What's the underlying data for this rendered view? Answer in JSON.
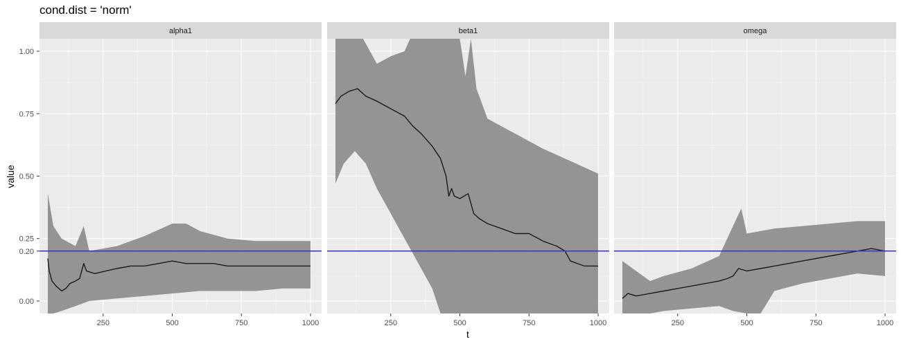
{
  "chart_data": {
    "type": "line",
    "title": "cond.dist = 'norm'",
    "xlabel": "t",
    "ylabel": "value",
    "xlim": [
      20,
      1040
    ],
    "ylim": [
      -0.05,
      1.05
    ],
    "x_ticks": [
      250,
      500,
      750,
      1000
    ],
    "y_ticks": [
      0.0,
      0.2,
      0.25,
      0.5,
      0.75,
      1.0
    ],
    "y_tick_labels": [
      "0.00",
      "0.20",
      "0.25",
      "0.50",
      "0.75",
      "1.00"
    ],
    "hline": {
      "value": 0.2,
      "color": "#3333cc"
    },
    "colors": {
      "line": "#1a1a1a",
      "band": "#8f8f8f"
    },
    "panels": [
      {
        "name": "alpha1",
        "mean": [
          [
            50,
            0.17
          ],
          [
            55,
            0.12
          ],
          [
            65,
            0.08
          ],
          [
            80,
            0.06
          ],
          [
            100,
            0.04
          ],
          [
            115,
            0.05
          ],
          [
            130,
            0.07
          ],
          [
            150,
            0.08
          ],
          [
            165,
            0.09
          ],
          [
            180,
            0.15
          ],
          [
            190,
            0.12
          ],
          [
            220,
            0.11
          ],
          [
            260,
            0.12
          ],
          [
            300,
            0.13
          ],
          [
            350,
            0.14
          ],
          [
            400,
            0.14
          ],
          [
            450,
            0.15
          ],
          [
            500,
            0.16
          ],
          [
            550,
            0.15
          ],
          [
            600,
            0.15
          ],
          [
            650,
            0.15
          ],
          [
            700,
            0.14
          ],
          [
            750,
            0.14
          ],
          [
            800,
            0.14
          ],
          [
            850,
            0.14
          ],
          [
            900,
            0.14
          ],
          [
            950,
            0.14
          ],
          [
            1000,
            0.14
          ]
        ],
        "lower": [
          [
            50,
            -0.05
          ],
          [
            70,
            -0.05
          ],
          [
            100,
            -0.04
          ],
          [
            150,
            -0.02
          ],
          [
            200,
            0.0
          ],
          [
            300,
            0.01
          ],
          [
            400,
            0.02
          ],
          [
            500,
            0.03
          ],
          [
            600,
            0.04
          ],
          [
            700,
            0.04
          ],
          [
            800,
            0.04
          ],
          [
            900,
            0.05
          ],
          [
            1000,
            0.05
          ]
        ],
        "upper": [
          [
            50,
            0.43
          ],
          [
            70,
            0.3
          ],
          [
            100,
            0.25
          ],
          [
            150,
            0.22
          ],
          [
            180,
            0.3
          ],
          [
            200,
            0.2
          ],
          [
            300,
            0.22
          ],
          [
            400,
            0.26
          ],
          [
            500,
            0.31
          ],
          [
            550,
            0.31
          ],
          [
            600,
            0.28
          ],
          [
            700,
            0.25
          ],
          [
            800,
            0.24
          ],
          [
            900,
            0.24
          ],
          [
            1000,
            0.24
          ]
        ]
      },
      {
        "name": "beta1",
        "mean": [
          [
            50,
            0.79
          ],
          [
            70,
            0.82
          ],
          [
            100,
            0.84
          ],
          [
            130,
            0.85
          ],
          [
            160,
            0.82
          ],
          [
            200,
            0.8
          ],
          [
            250,
            0.77
          ],
          [
            300,
            0.74
          ],
          [
            330,
            0.7
          ],
          [
            360,
            0.67
          ],
          [
            400,
            0.62
          ],
          [
            430,
            0.57
          ],
          [
            450,
            0.5
          ],
          [
            460,
            0.42
          ],
          [
            470,
            0.45
          ],
          [
            480,
            0.42
          ],
          [
            500,
            0.41
          ],
          [
            530,
            0.43
          ],
          [
            550,
            0.35
          ],
          [
            570,
            0.33
          ],
          [
            600,
            0.31
          ],
          [
            650,
            0.29
          ],
          [
            700,
            0.27
          ],
          [
            750,
            0.27
          ],
          [
            800,
            0.24
          ],
          [
            850,
            0.22
          ],
          [
            880,
            0.2
          ],
          [
            900,
            0.16
          ],
          [
            950,
            0.14
          ],
          [
            1000,
            0.14
          ]
        ],
        "lower": [
          [
            50,
            0.47
          ],
          [
            80,
            0.55
          ],
          [
            120,
            0.6
          ],
          [
            160,
            0.55
          ],
          [
            200,
            0.45
          ],
          [
            250,
            0.35
          ],
          [
            300,
            0.25
          ],
          [
            350,
            0.15
          ],
          [
            400,
            0.05
          ],
          [
            430,
            -0.05
          ],
          [
            500,
            -0.05
          ],
          [
            600,
            -0.05
          ],
          [
            700,
            -0.05
          ],
          [
            800,
            -0.05
          ],
          [
            900,
            -0.05
          ],
          [
            1000,
            -0.05
          ]
        ],
        "upper": [
          [
            50,
            1.05
          ],
          [
            150,
            1.05
          ],
          [
            200,
            0.95
          ],
          [
            250,
            0.98
          ],
          [
            300,
            1.0
          ],
          [
            320,
            1.05
          ],
          [
            500,
            1.05
          ],
          [
            520,
            0.9
          ],
          [
            540,
            1.05
          ],
          [
            560,
            0.85
          ],
          [
            600,
            0.73
          ],
          [
            700,
            0.67
          ],
          [
            800,
            0.61
          ],
          [
            900,
            0.56
          ],
          [
            1000,
            0.51
          ]
        ]
      },
      {
        "name": "omega",
        "mean": [
          [
            50,
            0.01
          ],
          [
            70,
            0.03
          ],
          [
            100,
            0.02
          ],
          [
            150,
            0.03
          ],
          [
            200,
            0.04
          ],
          [
            250,
            0.05
          ],
          [
            300,
            0.06
          ],
          [
            350,
            0.07
          ],
          [
            400,
            0.08
          ],
          [
            430,
            0.09
          ],
          [
            450,
            0.1
          ],
          [
            470,
            0.13
          ],
          [
            500,
            0.12
          ],
          [
            550,
            0.13
          ],
          [
            600,
            0.14
          ],
          [
            650,
            0.15
          ],
          [
            700,
            0.16
          ],
          [
            750,
            0.17
          ],
          [
            800,
            0.18
          ],
          [
            850,
            0.19
          ],
          [
            900,
            0.2
          ],
          [
            950,
            0.21
          ],
          [
            1000,
            0.2
          ]
        ],
        "lower": [
          [
            50,
            -0.05
          ],
          [
            150,
            -0.05
          ],
          [
            200,
            -0.04
          ],
          [
            300,
            -0.03
          ],
          [
            400,
            -0.02
          ],
          [
            450,
            -0.04
          ],
          [
            500,
            -0.05
          ],
          [
            550,
            -0.05
          ],
          [
            600,
            0.04
          ],
          [
            700,
            0.07
          ],
          [
            800,
            0.09
          ],
          [
            900,
            0.11
          ],
          [
            1000,
            0.1
          ]
        ],
        "upper": [
          [
            50,
            0.16
          ],
          [
            100,
            0.12
          ],
          [
            150,
            0.08
          ],
          [
            200,
            0.1
          ],
          [
            300,
            0.13
          ],
          [
            400,
            0.18
          ],
          [
            450,
            0.3
          ],
          [
            480,
            0.37
          ],
          [
            500,
            0.27
          ],
          [
            600,
            0.29
          ],
          [
            700,
            0.3
          ],
          [
            800,
            0.31
          ],
          [
            900,
            0.32
          ],
          [
            1000,
            0.32
          ]
        ]
      }
    ]
  }
}
